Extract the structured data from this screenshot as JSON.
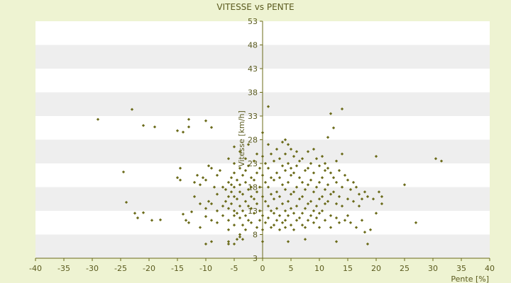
{
  "chart_data": {
    "type": "scatter",
    "title": "VITESSE vs PENTE",
    "xlabel": "Pente [%]",
    "ylabel": "Vitesse [km/h]",
    "xlim": [
      -40,
      40
    ],
    "ylim": [
      3,
      53
    ],
    "x_ticks": [
      -40,
      -35,
      -30,
      -25,
      -20,
      -15,
      -10,
      -5,
      0,
      5,
      10,
      15,
      20,
      25,
      30,
      35,
      40
    ],
    "y_ticks": [
      3,
      8,
      13,
      18,
      23,
      28,
      33,
      38,
      43,
      48,
      53
    ],
    "grid": true,
    "legend": "none",
    "colors": {
      "background": "#eef3d2",
      "plot_bg": "#ffffff",
      "band": "#eeeeee",
      "marker": "#6b6b1a",
      "axis": "#6b6b1a",
      "text": "#5a5a1e"
    },
    "points": [
      [
        -29,
        32.3
      ],
      [
        -23,
        34.4
      ],
      [
        -21,
        31
      ],
      [
        -19,
        30.7
      ],
      [
        -15,
        29.9
      ],
      [
        -14,
        29.6
      ],
      [
        -13,
        30.7
      ],
      [
        -13,
        32.3
      ],
      [
        -10,
        32
      ],
      [
        -9,
        30.6
      ],
      [
        -24.5,
        21.2
      ],
      [
        -24,
        14.8
      ],
      [
        -22.5,
        12.5
      ],
      [
        -22,
        11.5
      ],
      [
        -21,
        12.6
      ],
      [
        -19.5,
        11
      ],
      [
        -18,
        11.1
      ],
      [
        -15,
        20
      ],
      [
        -14.5,
        22
      ],
      [
        -14.5,
        19.5
      ],
      [
        -14,
        12.3
      ],
      [
        -13.5,
        11
      ],
      [
        -13,
        10.5
      ],
      [
        -12.5,
        12.8
      ],
      [
        -12,
        16
      ],
      [
        -12,
        19
      ],
      [
        -11.5,
        20.5
      ],
      [
        -11,
        18.5
      ],
      [
        -11,
        14.5
      ],
      [
        -11,
        9.5
      ],
      [
        -10.5,
        20
      ],
      [
        -10,
        19.5
      ],
      [
        -10,
        13.5
      ],
      [
        -10,
        11.8
      ],
      [
        -9.5,
        15
      ],
      [
        -9.5,
        22.5
      ],
      [
        -9,
        22
      ],
      [
        -9,
        14.5
      ],
      [
        -9,
        11
      ],
      [
        -8.5,
        18
      ],
      [
        -8,
        20.5
      ],
      [
        -8,
        16.5
      ],
      [
        -8,
        13
      ],
      [
        -8,
        10.5
      ],
      [
        -7.5,
        21.5
      ],
      [
        -7,
        18
      ],
      [
        -7,
        14
      ],
      [
        -7,
        12
      ],
      [
        -6.5,
        17.5
      ],
      [
        -6.5,
        15
      ],
      [
        -6,
        24
      ],
      [
        -6,
        19
      ],
      [
        -6,
        16
      ],
      [
        -6,
        13.5
      ],
      [
        -6,
        11
      ],
      [
        -6,
        9
      ],
      [
        -5.5,
        20
      ],
      [
        -5.5,
        18.5
      ],
      [
        -5.5,
        17
      ],
      [
        -5.5,
        14.5
      ],
      [
        -5,
        26.5
      ],
      [
        -5,
        23
      ],
      [
        -5,
        21
      ],
      [
        -5,
        18
      ],
      [
        -5,
        16
      ],
      [
        -5,
        13
      ],
      [
        -5,
        12
      ],
      [
        -5,
        10
      ],
      [
        -4.5,
        19.5
      ],
      [
        -4.5,
        15.5
      ],
      [
        -4.5,
        12.5
      ],
      [
        -4,
        25.5
      ],
      [
        -4,
        22
      ],
      [
        -4,
        18.5
      ],
      [
        -4,
        17
      ],
      [
        -4,
        14
      ],
      [
        -4,
        11.5
      ],
      [
        -4,
        8
      ],
      [
        -3.5,
        20.5
      ],
      [
        -3.5,
        16.5
      ],
      [
        -3.5,
        13
      ],
      [
        -3.5,
        10
      ],
      [
        -3,
        24
      ],
      [
        -3,
        21.5
      ],
      [
        -3,
        19
      ],
      [
        -3,
        15
      ],
      [
        -3,
        12
      ],
      [
        -3,
        9
      ],
      [
        -2.5,
        27
      ],
      [
        -2.5,
        22.5
      ],
      [
        -2.5,
        17.5
      ],
      [
        -2.5,
        14
      ],
      [
        -2.5,
        11
      ],
      [
        -2,
        20
      ],
      [
        -2,
        18
      ],
      [
        -2,
        16
      ],
      [
        -2,
        13.5
      ],
      [
        -2,
        10.5
      ],
      [
        -1.5,
        23.5
      ],
      [
        -1.5,
        19.5
      ],
      [
        -1.5,
        15.5
      ],
      [
        -1.5,
        12.5
      ],
      [
        -1,
        25
      ],
      [
        -1,
        21
      ],
      [
        -1,
        17
      ],
      [
        -1,
        14.5
      ],
      [
        -1,
        9.5
      ],
      [
        -0.5,
        22
      ],
      [
        -0.5,
        18
      ],
      [
        -0.5,
        13
      ],
      [
        -0.5,
        11
      ],
      [
        0,
        29.5
      ],
      [
        0,
        24.5
      ],
      [
        0,
        20.5
      ],
      [
        0,
        16
      ],
      [
        0,
        12
      ],
      [
        0,
        9
      ],
      [
        0.5,
        23
      ],
      [
        0.5,
        19
      ],
      [
        0.5,
        15
      ],
      [
        0.5,
        10.5
      ],
      [
        1,
        35
      ],
      [
        1,
        27
      ],
      [
        1,
        22
      ],
      [
        1,
        18
      ],
      [
        1,
        14
      ],
      [
        1,
        11.5
      ],
      [
        1.5,
        25
      ],
      [
        1.5,
        20
      ],
      [
        1.5,
        16.5
      ],
      [
        1.5,
        13
      ],
      [
        1.5,
        9.5
      ],
      [
        2,
        23.5
      ],
      [
        2,
        19.5
      ],
      [
        2,
        15.5
      ],
      [
        2,
        12.5
      ],
      [
        2,
        10
      ],
      [
        2.5,
        26
      ],
      [
        2.5,
        21
      ],
      [
        2.5,
        17
      ],
      [
        2.5,
        13.5
      ],
      [
        2.5,
        11
      ],
      [
        3,
        24
      ],
      [
        3,
        20
      ],
      [
        3,
        16
      ],
      [
        3,
        12
      ],
      [
        3,
        9
      ],
      [
        3.5,
        27.5
      ],
      [
        3.5,
        22.5
      ],
      [
        3.5,
        18.5
      ],
      [
        3.5,
        14.5
      ],
      [
        3.5,
        10.5
      ],
      [
        4,
        28
      ],
      [
        4,
        25
      ],
      [
        4,
        21.5
      ],
      [
        4,
        17.5
      ],
      [
        4,
        13
      ],
      [
        4,
        11
      ],
      [
        4,
        9.5
      ],
      [
        4.5,
        27
      ],
      [
        4.5,
        23
      ],
      [
        4.5,
        19
      ],
      [
        4.5,
        15
      ],
      [
        4.5,
        12
      ],
      [
        5,
        26
      ],
      [
        5,
        22
      ],
      [
        5,
        20.5
      ],
      [
        5,
        16.5
      ],
      [
        5,
        13.5
      ],
      [
        5,
        10
      ],
      [
        5.5,
        24.5
      ],
      [
        5.5,
        21
      ],
      [
        5.5,
        17
      ],
      [
        5.5,
        12.5
      ],
      [
        5.5,
        9
      ],
      [
        6,
        25.5
      ],
      [
        6,
        22.5
      ],
      [
        6,
        18
      ],
      [
        6,
        14
      ],
      [
        6,
        11
      ],
      [
        6.5,
        23.5
      ],
      [
        6.5,
        20
      ],
      [
        6.5,
        15.5
      ],
      [
        6.5,
        11.5
      ],
      [
        7,
        24
      ],
      [
        7,
        19
      ],
      [
        7,
        16
      ],
      [
        7,
        12.5
      ],
      [
        7,
        10
      ],
      [
        7.5,
        21.5
      ],
      [
        7.5,
        17.5
      ],
      [
        7.5,
        13.5
      ],
      [
        7.5,
        9.5
      ],
      [
        8,
        25.5
      ],
      [
        8,
        22
      ],
      [
        8,
        18.5
      ],
      [
        8,
        14.5
      ],
      [
        8,
        11
      ],
      [
        8.5,
        23
      ],
      [
        8.5,
        19.5
      ],
      [
        8.5,
        15
      ],
      [
        8.5,
        12
      ],
      [
        9,
        26
      ],
      [
        9,
        21
      ],
      [
        9,
        17
      ],
      [
        9,
        13
      ],
      [
        9,
        10.5
      ],
      [
        9.5,
        24
      ],
      [
        9.5,
        18
      ],
      [
        9.5,
        14
      ],
      [
        9.5,
        11.5
      ],
      [
        10,
        22.5
      ],
      [
        10,
        19
      ],
      [
        10,
        15.5
      ],
      [
        10,
        12.5
      ],
      [
        10,
        9.5
      ],
      [
        10.5,
        24.5
      ],
      [
        10.5,
        20
      ],
      [
        10.5,
        16
      ],
      [
        10.5,
        13
      ],
      [
        11,
        23
      ],
      [
        11,
        21.5
      ],
      [
        11,
        17.5
      ],
      [
        11,
        14.5
      ],
      [
        11,
        11
      ],
      [
        11.5,
        28.5
      ],
      [
        11.5,
        22
      ],
      [
        11.5,
        18.5
      ],
      [
        11.5,
        15
      ],
      [
        12,
        33.5
      ],
      [
        12,
        21
      ],
      [
        12,
        16.5
      ],
      [
        12,
        12
      ],
      [
        12,
        9.5
      ],
      [
        12.5,
        30.5
      ],
      [
        12.5,
        20
      ],
      [
        12.5,
        17
      ],
      [
        13,
        23.5
      ],
      [
        13,
        19
      ],
      [
        13,
        14.5
      ],
      [
        13,
        11.5
      ],
      [
        13.5,
        21.5
      ],
      [
        13.5,
        16
      ],
      [
        13.5,
        10.5
      ],
      [
        14,
        34.5
      ],
      [
        14,
        25
      ],
      [
        14,
        18
      ],
      [
        14,
        14
      ],
      [
        14.5,
        20.5
      ],
      [
        14.5,
        11
      ],
      [
        15,
        19.5
      ],
      [
        15,
        15.5
      ],
      [
        15,
        12
      ],
      [
        15.5,
        17.5
      ],
      [
        15.5,
        10.5
      ],
      [
        16,
        19
      ],
      [
        16,
        15
      ],
      [
        16.5,
        18
      ],
      [
        16.5,
        9.5
      ],
      [
        17,
        16.5
      ],
      [
        17,
        14
      ],
      [
        17.5,
        15.5
      ],
      [
        17.5,
        11
      ],
      [
        18,
        17
      ],
      [
        18,
        8.5
      ],
      [
        18.5,
        16
      ],
      [
        19,
        9
      ],
      [
        19.5,
        15.5
      ],
      [
        20,
        24.5
      ],
      [
        20,
        12.5
      ],
      [
        20.5,
        17
      ],
      [
        21,
        14.5
      ],
      [
        21,
        16
      ],
      [
        25,
        18.5
      ],
      [
        27,
        10.5
      ],
      [
        30.5,
        24
      ],
      [
        31.5,
        23.5
      ],
      [
        -10,
        6
      ],
      [
        -9,
        6.5
      ],
      [
        -6,
        6.5
      ],
      [
        -6,
        6
      ],
      [
        -5,
        6
      ],
      [
        -4.5,
        7
      ],
      [
        -4,
        7.5
      ],
      [
        -3.5,
        7
      ],
      [
        0,
        6.5
      ],
      [
        4.5,
        6.5
      ],
      [
        7.5,
        7
      ],
      [
        13,
        6.5
      ],
      [
        18.5,
        6
      ]
    ]
  }
}
